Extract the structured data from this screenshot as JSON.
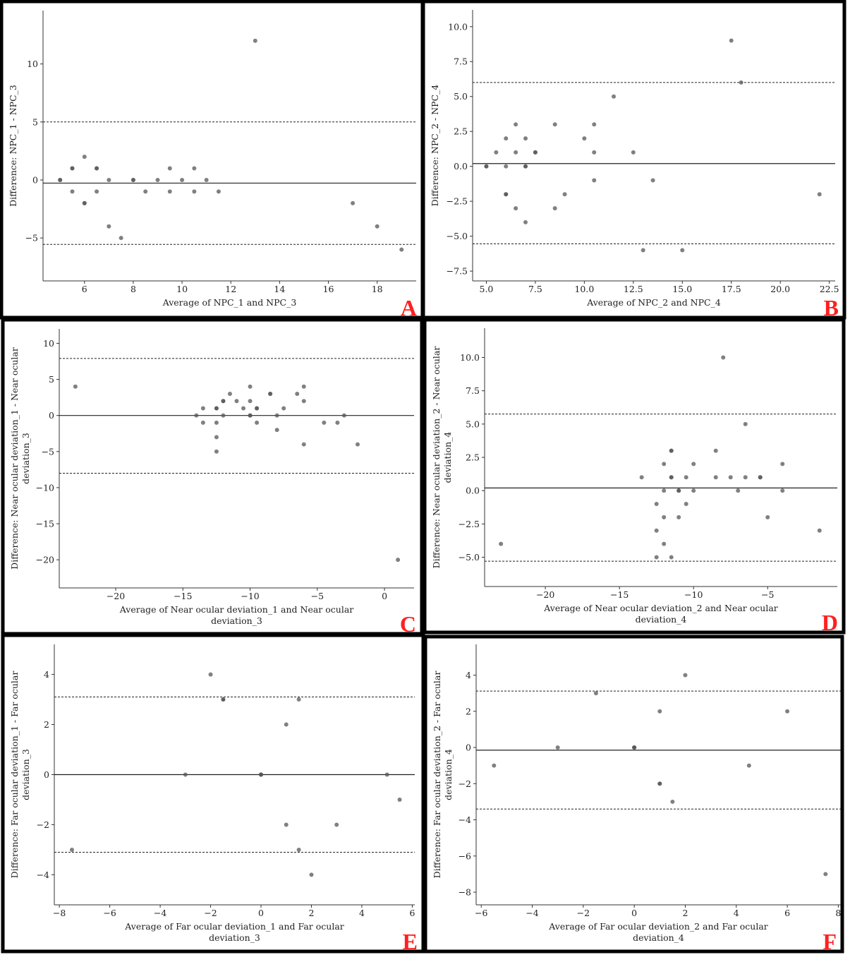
{
  "colors": {
    "point": "#555555",
    "letter": "#ff2020",
    "frame": "#000000"
  },
  "chart_data": [
    {
      "panel": "A",
      "type": "scatter",
      "subtype": "bland-altman",
      "xlabel": [
        "Average of NPC_1 and NPC_3"
      ],
      "ylabel": [
        "Difference: NPC_1 - NPC_3"
      ],
      "xlim": [
        4.3,
        19.6
      ],
      "ylim": [
        -8.7,
        14.6
      ],
      "xticks": [
        6,
        8,
        10,
        12,
        14,
        16,
        18
      ],
      "xtick_labels": [
        "6",
        "8",
        "10",
        "12",
        "14",
        "16",
        "18"
      ],
      "yticks": [
        -5,
        0,
        5,
        10
      ],
      "ytick_labels": [
        "−5",
        "0",
        "5",
        "10"
      ],
      "mean": -0.27,
      "upper_loa": 5.0,
      "lower_loa": -5.55,
      "points": [
        [
          5,
          0
        ],
        [
          5,
          0
        ],
        [
          5.5,
          1
        ],
        [
          5.5,
          1
        ],
        [
          5.5,
          -1
        ],
        [
          6,
          2
        ],
        [
          6,
          -2
        ],
        [
          6,
          -2
        ],
        [
          6.5,
          1
        ],
        [
          6.5,
          1
        ],
        [
          6.5,
          -1
        ],
        [
          7,
          0
        ],
        [
          7,
          -4
        ],
        [
          7.5,
          -5
        ],
        [
          8,
          0
        ],
        [
          8,
          0
        ],
        [
          8.5,
          -1
        ],
        [
          9,
          0
        ],
        [
          9.5,
          1
        ],
        [
          9.5,
          -1
        ],
        [
          10,
          0
        ],
        [
          10.5,
          1
        ],
        [
          10.5,
          -1
        ],
        [
          11,
          0
        ],
        [
          11.5,
          -1
        ],
        [
          13,
          12
        ],
        [
          17,
          -2
        ],
        [
          18,
          -4
        ],
        [
          19,
          -6
        ]
      ]
    },
    {
      "panel": "B",
      "type": "scatter",
      "subtype": "bland-altman",
      "xlabel": [
        "Average of NPC_2 and NPC_4"
      ],
      "ylabel": [
        "Difference: NPC_2 - NPC_4"
      ],
      "xlim": [
        4.3,
        22.8
      ],
      "ylim": [
        -8.2,
        11.2
      ],
      "xticks": [
        5,
        7.5,
        10,
        12.5,
        15,
        17.5,
        20,
        22.5
      ],
      "xtick_labels": [
        "5.0",
        "7.5",
        "10.0",
        "12.5",
        "15.0",
        "17.5",
        "20.0",
        "22.5"
      ],
      "yticks": [
        -7.5,
        -5,
        -2.5,
        0,
        2.5,
        5,
        7.5,
        10
      ],
      "ytick_labels": [
        "−7.5",
        "−5.0",
        "−2.5",
        "0.0",
        "2.5",
        "5.0",
        "7.5",
        "10.0"
      ],
      "mean": 0.2,
      "upper_loa": 6.0,
      "lower_loa": -5.55,
      "points": [
        [
          5,
          0
        ],
        [
          5,
          0
        ],
        [
          5.5,
          1
        ],
        [
          6,
          2
        ],
        [
          6,
          0
        ],
        [
          6,
          -2
        ],
        [
          6,
          -2
        ],
        [
          6.5,
          3
        ],
        [
          6.5,
          1
        ],
        [
          6.5,
          -3
        ],
        [
          7,
          2
        ],
        [
          7,
          0
        ],
        [
          7,
          0
        ],
        [
          7,
          -4
        ],
        [
          7.5,
          1
        ],
        [
          7.5,
          1
        ],
        [
          8.5,
          3
        ],
        [
          8.5,
          -3
        ],
        [
          9,
          -2
        ],
        [
          10,
          2
        ],
        [
          10.5,
          3
        ],
        [
          10.5,
          1
        ],
        [
          10.5,
          -1
        ],
        [
          11.5,
          5
        ],
        [
          12.5,
          1
        ],
        [
          13,
          -6
        ],
        [
          13.5,
          -1
        ],
        [
          15,
          -6
        ],
        [
          17.5,
          9
        ],
        [
          18,
          6
        ],
        [
          22,
          -2
        ]
      ]
    },
    {
      "panel": "C",
      "type": "scatter",
      "subtype": "bland-altman",
      "xlabel": [
        "Average of Near ocular deviation_1 and Near ocular",
        "deviation_3"
      ],
      "ylabel": [
        "Difference: Near ocular deviation_1 - Near ocular",
        "deviation_3"
      ],
      "xlim": [
        -24.2,
        2.2
      ],
      "ylim": [
        -23.9,
        12
      ],
      "xticks": [
        -20,
        -15,
        -10,
        -5,
        0
      ],
      "xtick_labels": [
        "−20",
        "−15",
        "−10",
        "−5",
        "0"
      ],
      "yticks": [
        -20,
        -15,
        -10,
        -5,
        0,
        5,
        10
      ],
      "ytick_labels": [
        "−20",
        "−15",
        "−10",
        "−5",
        "0",
        "5",
        "10"
      ],
      "mean": 0.0,
      "upper_loa": 7.9,
      "lower_loa": -8.0,
      "points": [
        [
          -23,
          4
        ],
        [
          -14,
          0
        ],
        [
          -13.5,
          1
        ],
        [
          -13.5,
          -1
        ],
        [
          -12.5,
          1
        ],
        [
          -12.5,
          1
        ],
        [
          -12.5,
          -1
        ],
        [
          -12.5,
          -3
        ],
        [
          -12.5,
          -5
        ],
        [
          -12,
          2
        ],
        [
          -12,
          2
        ],
        [
          -12,
          0
        ],
        [
          -11.5,
          3
        ],
        [
          -11,
          2
        ],
        [
          -10.5,
          1
        ],
        [
          -10,
          4
        ],
        [
          -10,
          2
        ],
        [
          -10,
          0
        ],
        [
          -10,
          0
        ],
        [
          -9.5,
          1
        ],
        [
          -9.5,
          1
        ],
        [
          -9.5,
          -1
        ],
        [
          -8.5,
          3
        ],
        [
          -8.5,
          3
        ],
        [
          -8,
          0
        ],
        [
          -8,
          -2
        ],
        [
          -7.5,
          1
        ],
        [
          -6.5,
          3
        ],
        [
          -6,
          4
        ],
        [
          -6,
          2
        ],
        [
          -6,
          -4
        ],
        [
          -4.5,
          -1
        ],
        [
          -3.5,
          -1
        ],
        [
          -3,
          0
        ],
        [
          -2,
          -4
        ],
        [
          1,
          -20
        ]
      ]
    },
    {
      "panel": "D",
      "type": "scatter",
      "subtype": "bland-altman",
      "xlabel": [
        "Average of Near ocular deviation_2 and Near ocular",
        "deviation_4"
      ],
      "ylabel": [
        "Difference: Near ocular deviation_2 - Near ocular",
        "deviation_4"
      ],
      "xlim": [
        -24.1,
        -0.3
      ],
      "ylim": [
        -7.2,
        12.2
      ],
      "xticks": [
        -20,
        -15,
        -10,
        -5
      ],
      "xtick_labels": [
        "−20",
        "−15",
        "−10",
        "−5"
      ],
      "yticks": [
        -5,
        -2.5,
        0,
        2.5,
        5,
        7.5,
        10
      ],
      "ytick_labels": [
        "−5.0",
        "−2.5",
        "0.0",
        "2.5",
        "5.0",
        "7.5",
        "10.0"
      ],
      "mean": 0.2,
      "upper_loa": 5.75,
      "lower_loa": -5.3,
      "points": [
        [
          -23,
          -4
        ],
        [
          -13.5,
          1
        ],
        [
          -12.5,
          -1
        ],
        [
          -12.5,
          -3
        ],
        [
          -12.5,
          -5
        ],
        [
          -12,
          2
        ],
        [
          -12,
          0
        ],
        [
          -12,
          -2
        ],
        [
          -12,
          -4
        ],
        [
          -11.5,
          3
        ],
        [
          -11.5,
          3
        ],
        [
          -11.5,
          1
        ],
        [
          -11.5,
          1
        ],
        [
          -11.5,
          -5
        ],
        [
          -11,
          0
        ],
        [
          -11,
          0
        ],
        [
          -11,
          -2
        ],
        [
          -10.5,
          1
        ],
        [
          -10.5,
          -1
        ],
        [
          -10,
          2
        ],
        [
          -10,
          0
        ],
        [
          -8.5,
          3
        ],
        [
          -8.5,
          1
        ],
        [
          -8,
          10
        ],
        [
          -7.5,
          1
        ],
        [
          -7,
          0
        ],
        [
          -6.5,
          5
        ],
        [
          -6.5,
          1
        ],
        [
          -5.5,
          1
        ],
        [
          -5.5,
          1
        ],
        [
          -5,
          -2
        ],
        [
          -4,
          2
        ],
        [
          -4,
          0
        ],
        [
          -1.5,
          -3
        ]
      ]
    },
    {
      "panel": "E",
      "type": "scatter",
      "subtype": "bland-altman",
      "xlabel": [
        "Average of Far ocular deviation_1 and Far ocular",
        "deviation_3"
      ],
      "ylabel": [
        "Difference: Far ocular deviation_1 - Far ocular",
        "deviation_3"
      ],
      "xlim": [
        -8.2,
        6.1
      ],
      "ylim": [
        -5.2,
        5.2
      ],
      "xticks": [
        -8,
        -6,
        -4,
        -2,
        0,
        2,
        4,
        6
      ],
      "xtick_labels": [
        "−8",
        "−6",
        "−4",
        "−2",
        "0",
        "2",
        "4",
        "6"
      ],
      "yticks": [
        -4,
        -2,
        0,
        2,
        4
      ],
      "ytick_labels": [
        "−4",
        "−2",
        "0",
        "2",
        "4"
      ],
      "mean": 0.0,
      "upper_loa": 3.1,
      "lower_loa": -3.1,
      "points": [
        [
          -7.5,
          -3
        ],
        [
          -3,
          0
        ],
        [
          -2,
          4
        ],
        [
          -1.5,
          3
        ],
        [
          -1.5,
          3
        ],
        [
          0,
          0
        ],
        [
          0,
          0
        ],
        [
          0,
          0
        ],
        [
          1,
          2
        ],
        [
          1,
          -2
        ],
        [
          1.5,
          3
        ],
        [
          1.5,
          -3
        ],
        [
          2,
          -4
        ],
        [
          3,
          -2
        ],
        [
          5,
          0
        ],
        [
          5.5,
          -1
        ]
      ]
    },
    {
      "panel": "F",
      "type": "scatter",
      "subtype": "bland-altman",
      "xlabel": [
        "Average of Far ocular deviation_2 and Far ocular",
        "deviation_4"
      ],
      "ylabel": [
        "Difference: Far ocular deviation_2 - Far ocular",
        "deviation_4"
      ],
      "xlim": [
        -6.2,
        8.1
      ],
      "ylim": [
        -8.7,
        5.7
      ],
      "xticks": [
        -6,
        -4,
        -2,
        0,
        2,
        4,
        6,
        8
      ],
      "xtick_labels": [
        "−6",
        "−4",
        "−2",
        "0",
        "2",
        "4",
        "6",
        "8"
      ],
      "yticks": [
        -8,
        -6,
        -4,
        -2,
        0,
        2,
        4
      ],
      "ytick_labels": [
        "−8",
        "−6",
        "−4",
        "−2",
        "0",
        "2",
        "4"
      ],
      "mean": -0.15,
      "upper_loa": 3.12,
      "lower_loa": -3.4,
      "points": [
        [
          -5.5,
          -1
        ],
        [
          -3,
          0
        ],
        [
          -1.5,
          3
        ],
        [
          0,
          0
        ],
        [
          0,
          0
        ],
        [
          0,
          0
        ],
        [
          1,
          2
        ],
        [
          1,
          -2
        ],
        [
          1,
          -2
        ],
        [
          1.5,
          -3
        ],
        [
          2,
          4
        ],
        [
          4.5,
          -1
        ],
        [
          6,
          2
        ],
        [
          7.5,
          -7
        ]
      ]
    }
  ]
}
